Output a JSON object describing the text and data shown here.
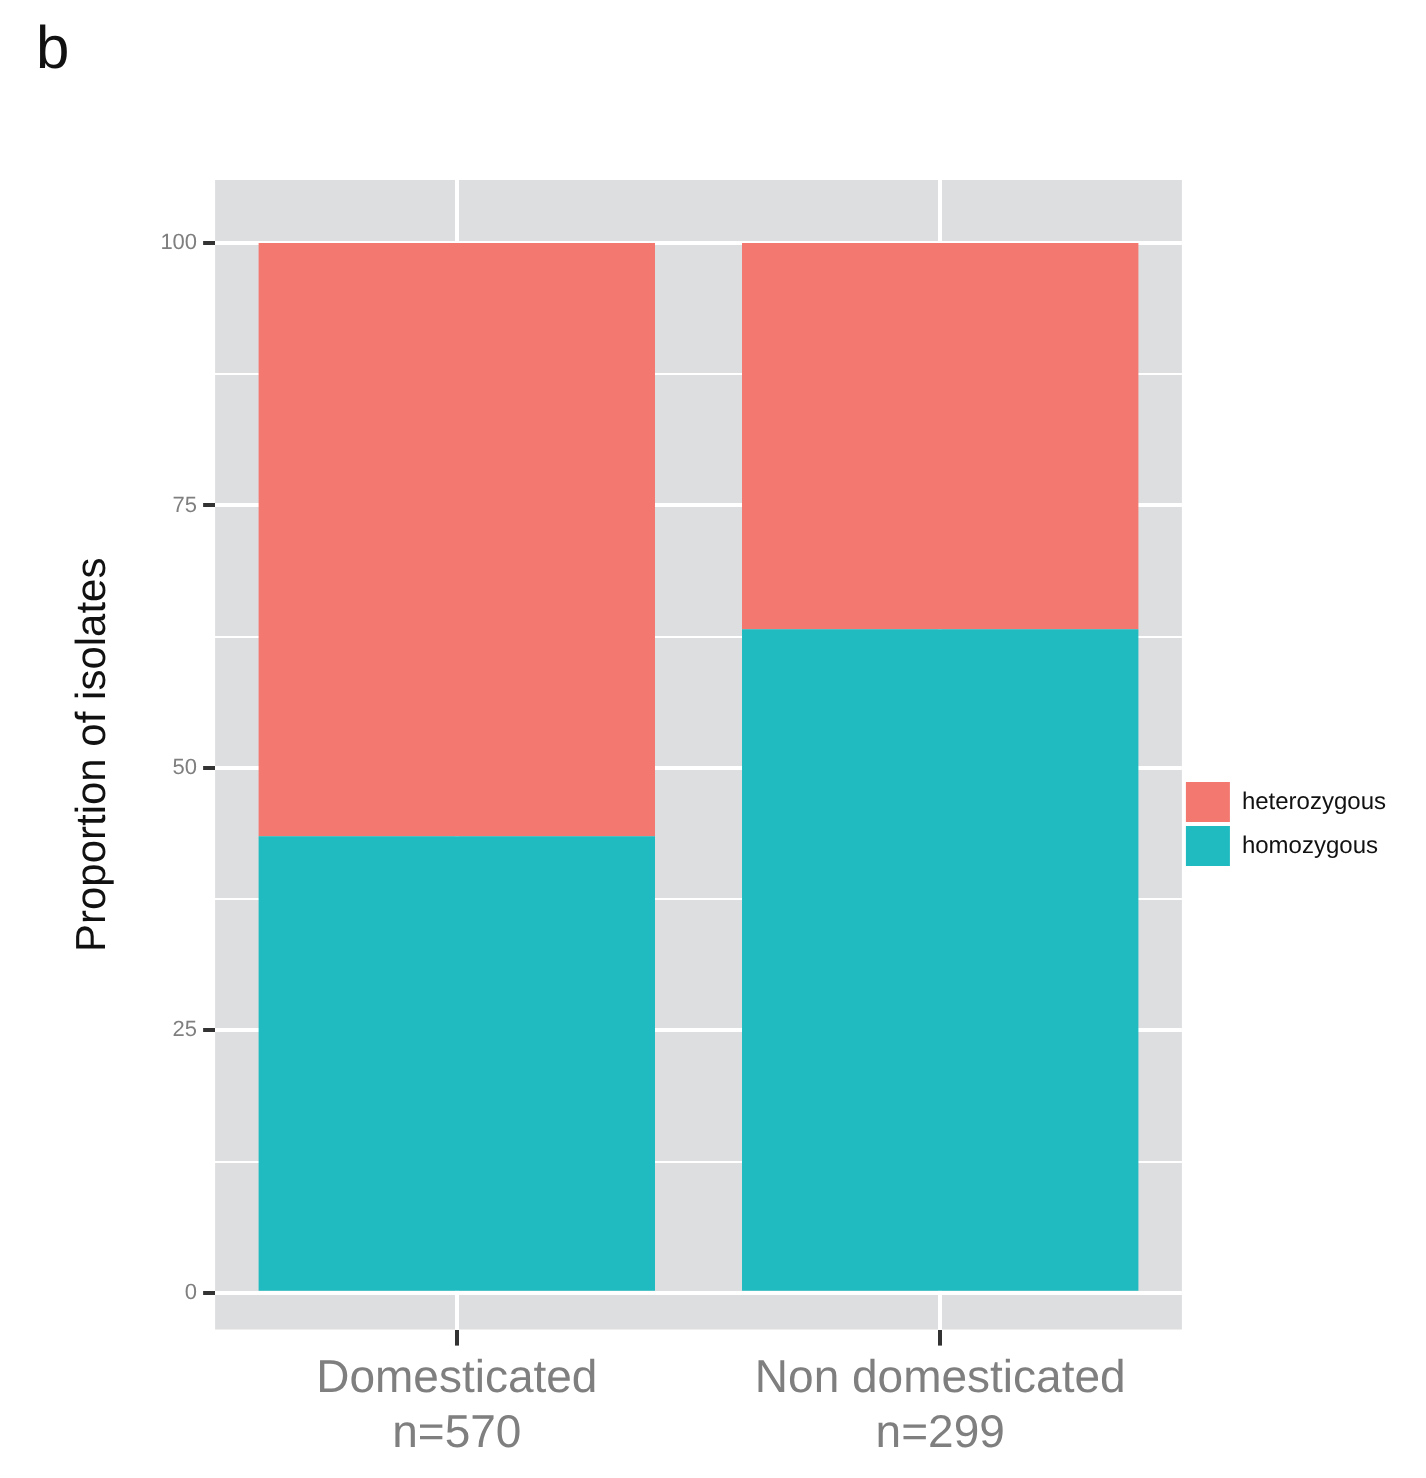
{
  "chart_data": {
    "type": "bar",
    "title": "b",
    "ylabel": "Proportion of isolates",
    "categories": [
      "Domesticated\nn=570",
      "Non domesticated\nn=299"
    ],
    "series": [
      {
        "name": "homozygous",
        "color": "#1fbbc0",
        "values": [
          43.5,
          63.2
        ]
      },
      {
        "name": "heterozygous",
        "color": "#f27870",
        "values": [
          56.5,
          36.8
        ]
      }
    ],
    "stacked": true,
    "ylim": [
      -3.5,
      106
    ],
    "yticks": [
      0,
      {
        "value": 12.5,
        "label": null
      },
      25,
      {
        "value": 37.5,
        "label": null
      },
      50,
      {
        "value": 62.5,
        "label": null
      },
      75,
      {
        "value": 87.5,
        "label": null
      },
      100
    ],
    "grid": true,
    "legend": "right"
  }
}
